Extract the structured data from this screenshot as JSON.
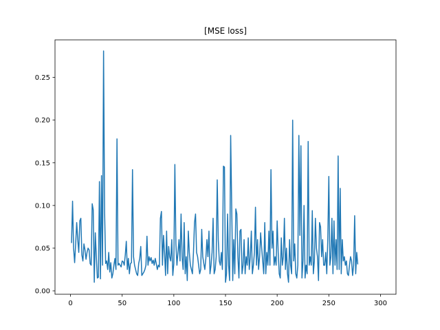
{
  "chart_data": {
    "type": "line",
    "title": "[MSE loss]",
    "xlabel": "",
    "ylabel": "",
    "xlim": [
      -15,
      315
    ],
    "ylim": [
      -0.004,
      0.294
    ],
    "xticks": [
      0,
      50,
      100,
      150,
      200,
      250,
      300
    ],
    "yticks": [
      0.0,
      0.05,
      0.1,
      0.15,
      0.2,
      0.25
    ],
    "xtick_labels": [
      "0",
      "50",
      "100",
      "150",
      "200",
      "250",
      "300"
    ],
    "ytick_labels": [
      "0.00",
      "0.05",
      "0.10",
      "0.15",
      "0.20",
      "0.25"
    ],
    "grid": false,
    "line_color": "#1f77b4",
    "series": [
      {
        "x_start": 1,
        "x_step": 1,
        "values": [
          0.056,
          0.105,
          0.05,
          0.033,
          0.055,
          0.08,
          0.06,
          0.045,
          0.082,
          0.085,
          0.042,
          0.035,
          0.055,
          0.048,
          0.037,
          0.045,
          0.05,
          0.048,
          0.032,
          0.03,
          0.102,
          0.095,
          0.01,
          0.068,
          0.04,
          0.015,
          0.016,
          0.128,
          0.014,
          0.135,
          0.03,
          0.281,
          0.092,
          0.032,
          0.035,
          0.025,
          0.045,
          0.022,
          0.033,
          0.015,
          0.02,
          0.03,
          0.038,
          0.025,
          0.178,
          0.03,
          0.032,
          0.03,
          0.028,
          0.035,
          0.034,
          0.03,
          0.042,
          0.058,
          0.025,
          0.038,
          0.02,
          0.032,
          0.033,
          0.142,
          0.04,
          0.03,
          0.025,
          0.02,
          0.018,
          0.032,
          0.038,
          0.052,
          0.018,
          0.02,
          0.022,
          0.025,
          0.03,
          0.064,
          0.03,
          0.04,
          0.035,
          0.039,
          0.032,
          0.036,
          0.03,
          0.038,
          0.032,
          0.025,
          0.03,
          0.028,
          0.085,
          0.093,
          0.03,
          0.065,
          0.045,
          0.018,
          0.07,
          0.02,
          0.052,
          0.04,
          0.035,
          0.06,
          0.018,
          0.032,
          0.148,
          0.055,
          0.03,
          0.045,
          0.06,
          0.035,
          0.09,
          0.04,
          0.025,
          0.08,
          0.02,
          0.04,
          0.012,
          0.07,
          0.045,
          0.03,
          0.025,
          0.02,
          0.045,
          0.08,
          0.09,
          0.045,
          0.04,
          0.03,
          0.02,
          0.025,
          0.072,
          0.04,
          0.032,
          0.025,
          0.038,
          0.06,
          0.04,
          0.07,
          0.02,
          0.03,
          0.045,
          0.085,
          0.02,
          0.025,
          0.04,
          0.13,
          0.06,
          0.035,
          0.03,
          0.045,
          0.025,
          0.146,
          0.145,
          0.01,
          0.02,
          0.09,
          0.03,
          0.012,
          0.182,
          0.1,
          0.012,
          0.06,
          0.02,
          0.096,
          0.09,
          0.04,
          0.015,
          0.07,
          0.072,
          0.02,
          0.03,
          0.06,
          0.02,
          0.04,
          0.03,
          0.062,
          0.025,
          0.04,
          0.07,
          0.02,
          0.03,
          0.045,
          0.098,
          0.03,
          0.06,
          0.025,
          0.04,
          0.068,
          0.05,
          0.035,
          0.02,
          0.08,
          0.02,
          0.045,
          0.03,
          0.07,
          0.03,
          0.142,
          0.05,
          0.07,
          0.03,
          0.04,
          0.03,
          0.082,
          0.045,
          0.02,
          0.015,
          0.062,
          0.03,
          0.04,
          0.085,
          0.025,
          0.05,
          0.02,
          0.01,
          0.06,
          0.03,
          0.02,
          0.2,
          0.035,
          0.055,
          0.02,
          0.015,
          0.03,
          0.182,
          0.065,
          0.17,
          0.015,
          0.035,
          0.1,
          0.015,
          0.03,
          0.02,
          0.175,
          0.03,
          0.04,
          0.03,
          0.094,
          0.02,
          0.035,
          0.085,
          0.05,
          0.04,
          0.012,
          0.08,
          0.075,
          0.04,
          0.06,
          0.03,
          0.03,
          0.045,
          0.02,
          0.06,
          0.134,
          0.03,
          0.04,
          0.085,
          0.02,
          0.082,
          0.03,
          0.06,
          0.025,
          0.158,
          0.025,
          0.12,
          0.02,
          0.06,
          0.035,
          0.04,
          0.03,
          0.035,
          0.02,
          0.018,
          0.03,
          0.04,
          0.035,
          0.018,
          0.03,
          0.088,
          0.02,
          0.045,
          0.031
        ]
      }
    ]
  }
}
